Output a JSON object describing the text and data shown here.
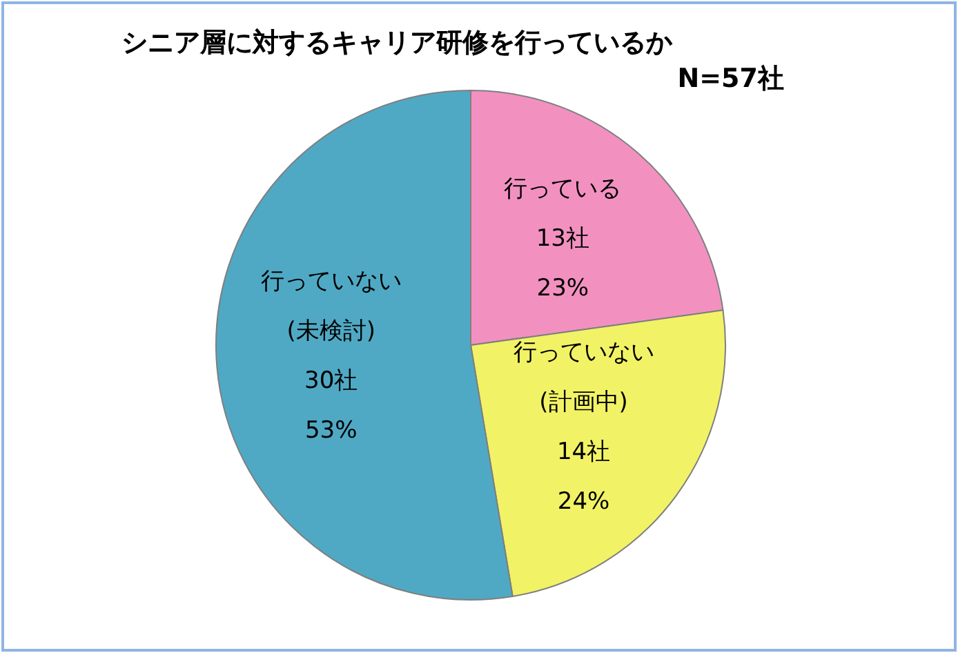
{
  "chart_data": {
    "type": "pie",
    "title": "シニア層に対するキャリア研修を行っているか",
    "subtitle": "N=57社",
    "categories": [
      "行っている",
      "行っていない\n(計画中)",
      "行っていない\n(未検討)"
    ],
    "values": [
      13,
      14,
      30
    ],
    "value_labels": [
      "13社\n23%",
      "14社\n24%",
      "30社\n53%"
    ],
    "colors": [
      "#f291c0",
      "#f2f266",
      "#4fa9c4"
    ],
    "legend": false
  }
}
